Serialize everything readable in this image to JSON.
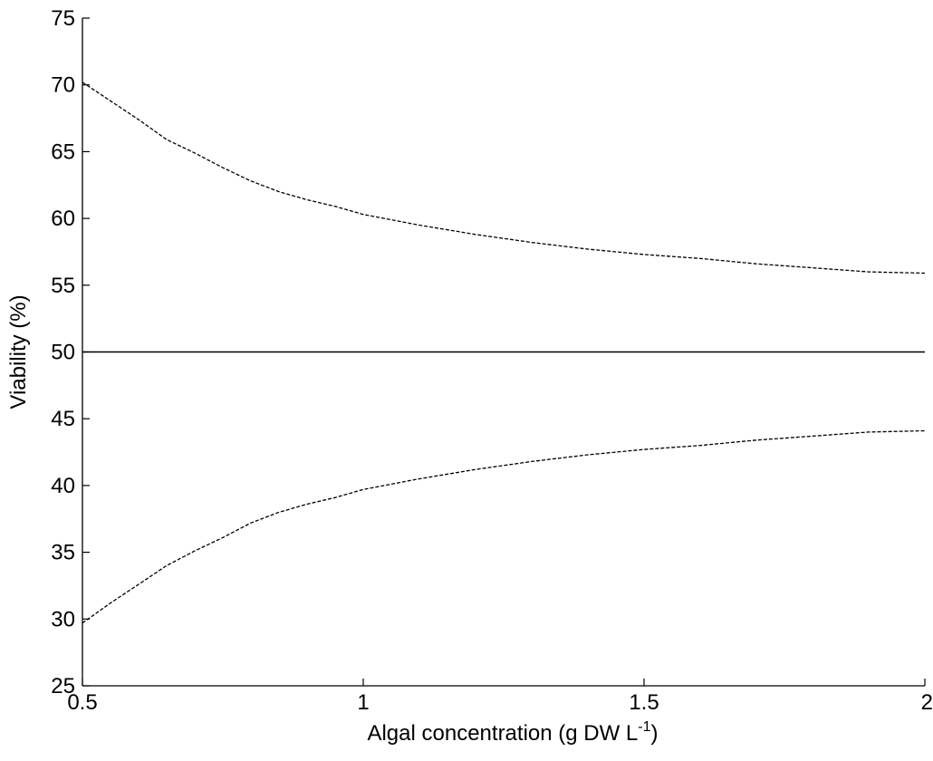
{
  "chart_data": {
    "type": "line",
    "title": "",
    "xlabel": "Algal concentration (g DW L",
    "xlabel_sup": "-1",
    "xlabel_end": ")",
    "ylabel": "Viability (%)",
    "xlim": [
      0.5,
      2
    ],
    "ylim": [
      25,
      75
    ],
    "xticks": [
      0.5,
      1,
      1.5,
      2
    ],
    "xtick_labels": [
      "0.5",
      "1",
      "1.5",
      "2"
    ],
    "yticks": [
      25,
      30,
      35,
      40,
      45,
      50,
      55,
      60,
      65,
      70,
      75
    ],
    "ytick_labels": [
      "25",
      "30",
      "35",
      "40",
      "45",
      "50",
      "55",
      "60",
      "65",
      "70",
      "75"
    ],
    "grid": false,
    "legend": "none",
    "series": [
      {
        "style": "dashed",
        "x": [
          0.5,
          0.55,
          0.6,
          0.65,
          0.7,
          0.75,
          0.8,
          0.85,
          0.9,
          0.95,
          1.0,
          1.1,
          1.2,
          1.3,
          1.4,
          1.5,
          1.6,
          1.7,
          1.8,
          1.9,
          2.0
        ],
        "values": [
          70.2,
          68.8,
          67.4,
          65.9,
          64.9,
          63.8,
          62.8,
          62.0,
          61.4,
          60.9,
          60.3,
          59.5,
          58.8,
          58.2,
          57.7,
          57.3,
          57.0,
          56.6,
          56.3,
          56.0,
          55.9
        ]
      },
      {
        "style": "solid",
        "x": [
          0.5,
          2.0
        ],
        "values": [
          50,
          50
        ]
      },
      {
        "style": "dashed",
        "x": [
          0.5,
          0.55,
          0.6,
          0.65,
          0.7,
          0.75,
          0.8,
          0.85,
          0.9,
          0.95,
          1.0,
          1.1,
          1.2,
          1.3,
          1.4,
          1.5,
          1.6,
          1.7,
          1.8,
          1.9,
          2.0
        ],
        "values": [
          29.7,
          31.2,
          32.6,
          34.0,
          35.1,
          36.1,
          37.2,
          38.0,
          38.6,
          39.1,
          39.7,
          40.5,
          41.2,
          41.8,
          42.3,
          42.7,
          43.0,
          43.4,
          43.7,
          44.0,
          44.1
        ]
      }
    ]
  }
}
